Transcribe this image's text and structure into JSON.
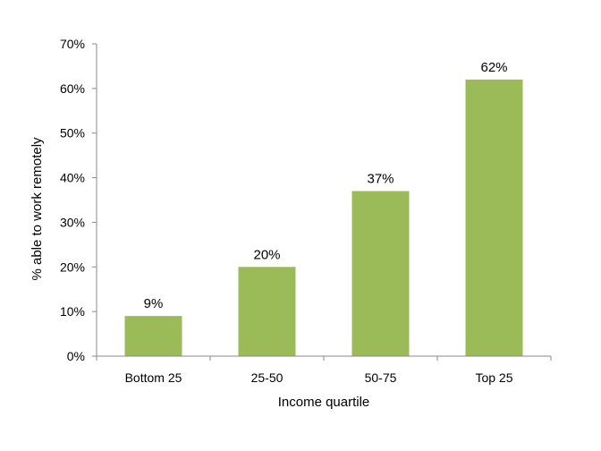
{
  "chart_data": {
    "type": "bar",
    "title": "",
    "xlabel": "Income quartile",
    "ylabel": "% able to work remotely",
    "categories": [
      "Bottom 25",
      "25-50",
      "50-75",
      "Top 25"
    ],
    "values": [
      9,
      20,
      37,
      62
    ],
    "value_labels": [
      "9%",
      "20%",
      "37%",
      "62%"
    ],
    "ylim": [
      0,
      70
    ],
    "yticks": [
      0,
      10,
      20,
      30,
      40,
      50,
      60,
      70
    ],
    "ytick_labels": [
      "0%",
      "10%",
      "20%",
      "30%",
      "40%",
      "50%",
      "60%",
      "70%"
    ],
    "grid": false,
    "legend": "none",
    "bar_color": "#9BBB59"
  }
}
